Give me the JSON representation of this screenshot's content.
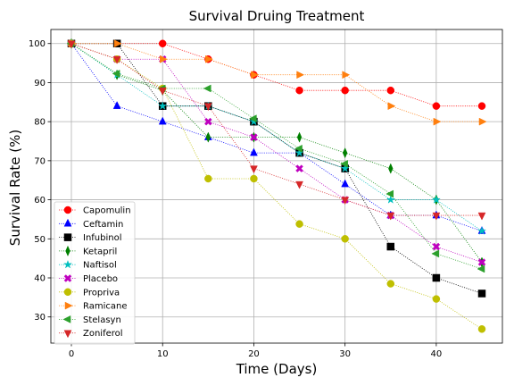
{
  "chart_data": {
    "type": "line",
    "title": "Survival Druing Treatment",
    "xlabel": "Time (Days)",
    "ylabel": "Survival Rate (%)",
    "xlim": [
      -2.25,
      47.25
    ],
    "ylim": [
      23.3,
      103.6
    ],
    "xticks": [
      0,
      10,
      20,
      30,
      40
    ],
    "yticks": [
      30,
      40,
      50,
      60,
      70,
      80,
      90,
      100
    ],
    "grid": true,
    "legend_position": "lower-left",
    "x": [
      0,
      5,
      10,
      15,
      20,
      25,
      30,
      35,
      40,
      45
    ],
    "series": [
      {
        "name": "Capomulin",
        "color": "#ff0000",
        "marker": "circle",
        "values": [
          100,
          100,
          100,
          96,
          92,
          88,
          88,
          88,
          84,
          84
        ]
      },
      {
        "name": "Ceftamin",
        "color": "#0000ff",
        "marker": "triangle-up",
        "values": [
          100,
          84,
          80,
          76,
          72,
          72,
          64,
          56,
          56,
          52
        ]
      },
      {
        "name": "Infubinol",
        "color": "#000000",
        "marker": "square",
        "values": [
          100,
          100,
          84,
          84,
          80,
          72,
          68,
          48,
          40,
          36
        ]
      },
      {
        "name": "Ketapril",
        "color": "#008000",
        "marker": "thin-diamond",
        "values": [
          100,
          92,
          88,
          76,
          76,
          76,
          72,
          68,
          60,
          44
        ]
      },
      {
        "name": "Naftisol",
        "color": "#00bfbf",
        "marker": "star",
        "values": [
          100,
          92,
          84,
          84,
          80,
          72,
          68,
          60,
          60,
          52
        ]
      },
      {
        "name": "Placebo",
        "color": "#bf00bf",
        "marker": "x-filled",
        "values": [
          100,
          96,
          96,
          80,
          76,
          68,
          60,
          56,
          48,
          44
        ]
      },
      {
        "name": "Propriva",
        "color": "#bfbf00",
        "marker": "circle",
        "values": [
          100,
          96,
          88.5,
          65.4,
          65.4,
          53.8,
          50,
          38.5,
          34.6,
          26.9
        ]
      },
      {
        "name": "Ramicane",
        "color": "#ff7f0e",
        "marker": "triangle-right",
        "values": [
          100,
          100,
          96,
          96,
          92,
          92,
          92,
          84,
          80,
          80
        ]
      },
      {
        "name": "Stelasyn",
        "color": "#2ca02c",
        "marker": "triangle-left",
        "values": [
          100,
          92.3,
          88.5,
          88.5,
          80.8,
          73.1,
          69.2,
          61.5,
          46.2,
          42.3
        ]
      },
      {
        "name": "Zoniferol",
        "color": "#d62728",
        "marker": "triangle-down",
        "values": [
          100,
          96,
          88,
          84,
          68,
          64,
          60,
          56,
          56,
          56
        ]
      }
    ]
  }
}
